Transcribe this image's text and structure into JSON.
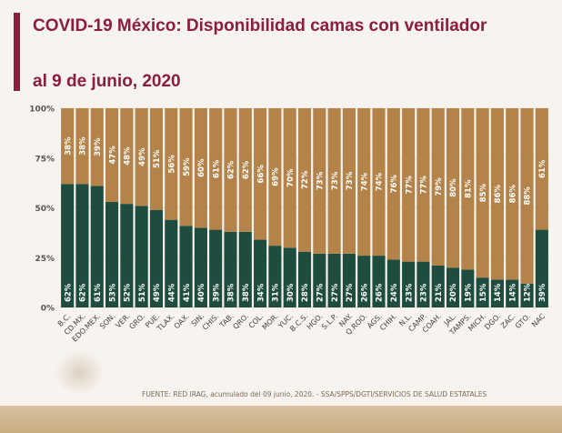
{
  "header": {
    "title_line1": "COVID-19 México: Disponibilidad camas con ventilador",
    "title_line2": "al 9 de junio, 2020"
  },
  "footer": {
    "source": "FUENTE: RED IRAG, acumulado del 09 junio, 2020. -  SSA/SPPS/DGTI/SERVICIOS DE SALUD ESTATALES"
  },
  "colors": {
    "title": "#8c1d3c",
    "available": "#1e4d3f",
    "occupied": "#b3834a"
  },
  "chart_data": {
    "type": "bar",
    "stacked": true,
    "percent": true,
    "title": "",
    "xlabel": "",
    "ylabel": "",
    "ylim": [
      0,
      100
    ],
    "yticks": [
      "0%",
      "25%",
      "50%",
      "75%",
      "100%"
    ],
    "grid": true,
    "categories": [
      "B.C.",
      "CD.MX.",
      "EDO.MEX.",
      "SON.",
      "VER.",
      "GRO.",
      "PUE.",
      "TLAX.",
      "OAX.",
      "SIN.",
      "CHIS.",
      "TAB.",
      "QRO.",
      "COL.",
      "MOR.",
      "YUC.",
      "B.C.S.",
      "HGO.",
      "S.L.P.",
      "NAY.",
      "Q.ROO.",
      "AGS.",
      "CHIH.",
      "N.L.",
      "CAMP.",
      "COAH.",
      "JAL.",
      "TAMPS.",
      "MICH.",
      "DGO.",
      "ZAC.",
      "GTO.",
      "NAC"
    ],
    "series": [
      {
        "values": [
          62,
          62,
          61,
          53,
          52,
          51,
          49,
          44,
          41,
          40,
          39,
          38,
          38,
          34,
          31,
          30,
          28,
          27,
          27,
          27,
          26,
          26,
          24,
          23,
          23,
          21,
          20,
          19,
          15,
          14,
          14,
          12,
          39
        ]
      },
      {
        "values": [
          38,
          38,
          39,
          47,
          48,
          49,
          51,
          56,
          59,
          60,
          61,
          62,
          62,
          66,
          69,
          70,
          72,
          73,
          73,
          73,
          74,
          74,
          76,
          77,
          77,
          79,
          80,
          81,
          85,
          86,
          86,
          88,
          61
        ]
      }
    ]
  }
}
